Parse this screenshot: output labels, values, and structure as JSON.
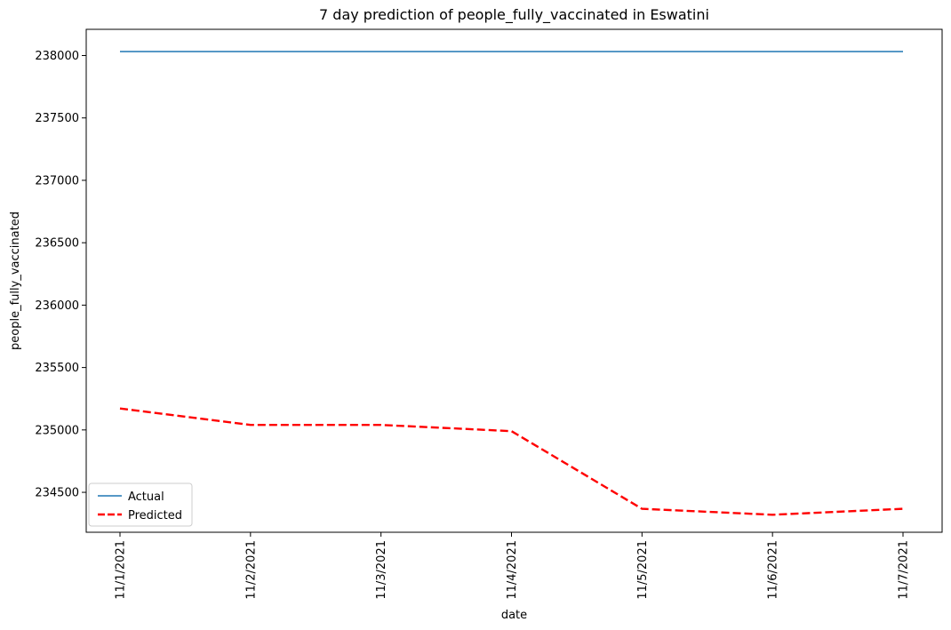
{
  "chart_data": {
    "type": "line",
    "title": "7 day prediction of people_fully_vaccinated in Eswatini",
    "xlabel": "date",
    "ylabel": "people_fully_vaccinated",
    "categories": [
      "11/1/2021",
      "11/2/2021",
      "11/3/2021",
      "11/4/2021",
      "11/5/2021",
      "11/6/2021",
      "11/7/2021"
    ],
    "yticks": [
      234500,
      235000,
      235500,
      236000,
      236500,
      237000,
      237500,
      238000
    ],
    "ylim": [
      234180,
      238210
    ],
    "grid": false,
    "legend_position": "lower-left",
    "series": [
      {
        "name": "Actual",
        "color": "#1f77b4",
        "style": "solid",
        "values": [
          238032,
          238032,
          238032,
          238032,
          238032,
          238032,
          238032
        ]
      },
      {
        "name": "Predicted",
        "color": "#ff0000",
        "style": "dashed",
        "values": [
          235172,
          235040,
          235040,
          234990,
          234368,
          234320,
          234368
        ]
      }
    ]
  }
}
